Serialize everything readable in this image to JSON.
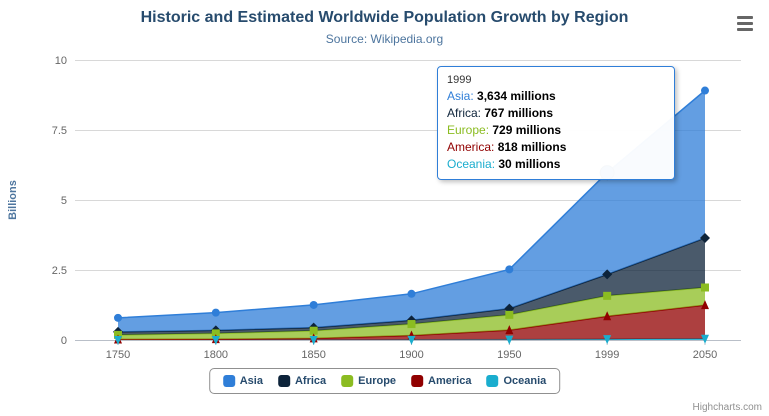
{
  "credits": "Highcharts.com",
  "chart_data": {
    "type": "area",
    "stacking": "normal",
    "title": "Historic and Estimated Worldwide Population Growth by Region",
    "subtitle": "Source: Wikipedia.org",
    "categories": [
      "1750",
      "1800",
      "1850",
      "1900",
      "1950",
      "1999",
      "2050"
    ],
    "ylabel": "Billions",
    "ylim": [
      0,
      10
    ],
    "yticks": [
      0,
      2.5,
      5,
      7.5,
      10
    ],
    "unit": "millions",
    "grid": "horizontal",
    "legend_position": "bottom",
    "series": [
      {
        "name": "Asia",
        "color": "#2f7ed8",
        "marker": "circle",
        "values": [
          502,
          635,
          809,
          947,
          1402,
          3634,
          5268
        ]
      },
      {
        "name": "Africa",
        "color": "#0d233a",
        "marker": "diamond",
        "values": [
          106,
          107,
          111,
          133,
          221,
          767,
          1766
        ]
      },
      {
        "name": "Europe",
        "color": "#8bbc21",
        "marker": "square",
        "values": [
          163,
          203,
          276,
          408,
          547,
          729,
          628
        ]
      },
      {
        "name": "America",
        "color": "#910000",
        "marker": "triangle",
        "values": [
          18,
          31,
          54,
          156,
          339,
          818,
          1201
        ]
      },
      {
        "name": "Oceania",
        "color": "#1aadce",
        "marker": "triangle-down",
        "values": [
          2,
          2,
          2,
          6,
          13,
          30,
          46
        ]
      }
    ],
    "stack_order_bottom_to_top": [
      "Oceania",
      "America",
      "Europe",
      "Africa",
      "Asia"
    ],
    "hover": {
      "category": "1999",
      "series": "Asia"
    }
  },
  "tooltip": {
    "header": "1999",
    "rows": [
      {
        "name": "Asia",
        "value": "3,634 millions"
      },
      {
        "name": "Africa",
        "value": "767 millions"
      },
      {
        "name": "Europe",
        "value": "729 millions"
      },
      {
        "name": "America",
        "value": "818 millions"
      },
      {
        "name": "Oceania",
        "value": "30 millions"
      }
    ]
  },
  "legend": {
    "items": [
      "Asia",
      "Africa",
      "Europe",
      "America",
      "Oceania"
    ]
  }
}
